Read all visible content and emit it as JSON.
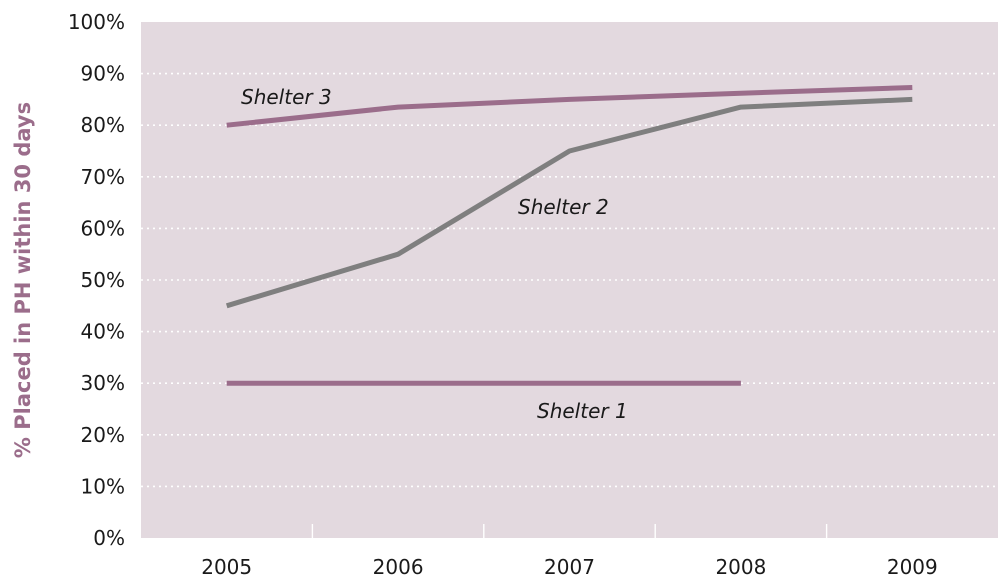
{
  "chart_data": {
    "type": "line",
    "categories": [
      "2005",
      "2006",
      "2007",
      "2008",
      "2009"
    ],
    "ylabel": "% Placed in PH within 30 days",
    "xlabel": "",
    "ylim": [
      0,
      100
    ],
    "yticks": [
      "0%",
      "10%",
      "20%",
      "30%",
      "40%",
      "50%",
      "60%",
      "70%",
      "80%",
      "90%",
      "100%"
    ],
    "grid": true,
    "legend": "none",
    "series": [
      {
        "name": "Shelter 1",
        "values": [
          30,
          30,
          30,
          30,
          null
        ],
        "color": "#9b6d8b"
      },
      {
        "name": "Shelter 2",
        "values": [
          45,
          55,
          75,
          83.5,
          85
        ],
        "color": "#7f7f7f"
      },
      {
        "name": "Shelter 3",
        "values": [
          80,
          83.5,
          85,
          86.2,
          87.3
        ],
        "color": "#9b6d8b"
      }
    ],
    "colors": {
      "plot_background": "#e3d9df",
      "gridline": "#ffffff",
      "axis_title": "#9b6d8b"
    }
  }
}
